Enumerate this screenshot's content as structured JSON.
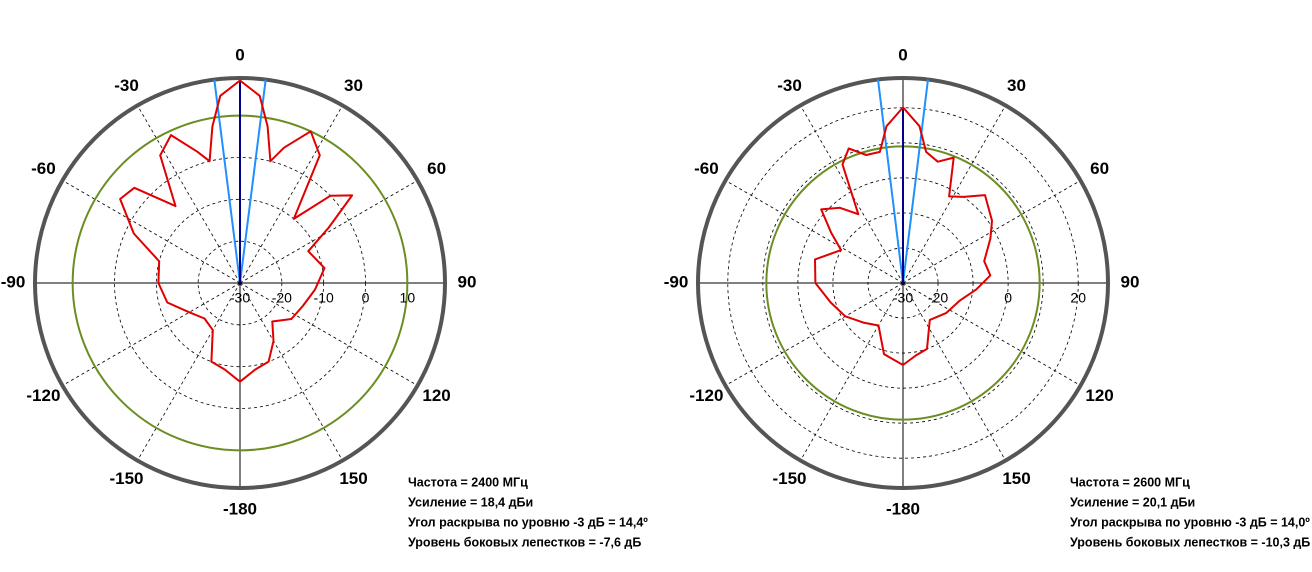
{
  "chart_data": [
    {
      "type": "polar",
      "color": "#e00000",
      "theta": [
        -180,
        -170,
        -160,
        -150,
        -135,
        -120,
        -105,
        -90,
        -75,
        -65,
        -55,
        -48,
        -40,
        -32,
        -25,
        -18,
        -14,
        -10,
        -6,
        0,
        6,
        10,
        14,
        18,
        25,
        32,
        40,
        46,
        52,
        58,
        65,
        80,
        95,
        110,
        125,
        140,
        150,
        160,
        170
      ],
      "values": [
        -6.4,
        -9,
        -10,
        -17,
        -18,
        -16,
        -12,
        -10.5,
        -10,
        -2,
        5,
        4,
        -6,
        6,
        9,
        3,
        0,
        8,
        15,
        18.4,
        15,
        8,
        0,
        4,
        10,
        6,
        -10,
        0,
        4,
        -5,
        -12,
        -9.5,
        -12,
        -14,
        -15,
        -18,
        -14,
        -10,
        -9
      ],
      "rlim": [
        -30,
        19
      ],
      "rticks": [
        -30,
        -20,
        -10,
        0,
        10
      ],
      "rgrid": [
        -20,
        -10,
        0,
        10
      ],
      "theta_ticks": [
        {
          "value": 0,
          "label": "0"
        },
        {
          "value": 30,
          "label": "30"
        },
        {
          "value": 60,
          "label": "60"
        },
        {
          "value": 90,
          "label": "90"
        },
        {
          "value": 120,
          "label": "120"
        },
        {
          "value": 150,
          "label": "150"
        },
        {
          "value": 180,
          "label": "-180"
        },
        {
          "value": -150,
          "label": "-150"
        },
        {
          "value": -120,
          "label": "-120"
        },
        {
          "value": -90,
          "label": "-90"
        },
        {
          "value": -60,
          "label": "-60"
        },
        {
          "value": -30,
          "label": "-30"
        }
      ],
      "reference_level": 10,
      "reference_color": "#6b8e23",
      "beam_lines": [
        -7.2,
        7.2
      ],
      "beam_color": "#1e90ff",
      "axis_color": "#00008b",
      "annotations": [
        "Частота = 2400 МГц",
        "Усиление = 18,4 дБи",
        "Угол раскрыва по уровню -3 дБ = 14,4º",
        "Уровень боковых лепестков = -7,6 дБ"
      ]
    },
    {
      "type": "polar",
      "color": "#e00000",
      "theta": [
        -180,
        -165,
        -150,
        -135,
        -120,
        -105,
        -90,
        -75,
        -62,
        -55,
        -48,
        -40,
        -33,
        -27,
        -22,
        -16,
        -10,
        -6,
        0,
        6,
        10,
        16,
        22,
        28,
        35,
        43,
        55,
        63,
        75,
        85,
        95,
        107,
        125,
        144,
        160,
        170
      ],
      "values": [
        -6.6,
        -9,
        -16,
        -14,
        -11,
        -8.6,
        -5,
        -4,
        -10,
        -5,
        1.4,
        -2,
        -6.6,
        8,
        11.4,
        8,
        8,
        15,
        20.1,
        15,
        8,
        6,
        8.6,
        -2,
        0,
        4.3,
        1,
        -2,
        -6,
        -5,
        -9,
        -13,
        -15,
        -17,
        -10,
        -9
      ],
      "rlim": [
        -30,
        28.5
      ],
      "rticks": [
        -30,
        -20,
        0,
        20
      ],
      "rgrid": [
        -20,
        -10,
        0,
        10,
        20
      ],
      "theta_ticks": [
        {
          "value": 0,
          "label": "0"
        },
        {
          "value": 30,
          "label": "30"
        },
        {
          "value": 60,
          "label": "60"
        },
        {
          "value": 90,
          "label": "90"
        },
        {
          "value": 120,
          "label": "120"
        },
        {
          "value": 150,
          "label": "150"
        },
        {
          "value": 180,
          "label": "-180"
        },
        {
          "value": -150,
          "label": "-150"
        },
        {
          "value": -120,
          "label": "-120"
        },
        {
          "value": -90,
          "label": "-90"
        },
        {
          "value": -60,
          "label": "-60"
        },
        {
          "value": -30,
          "label": "-30"
        }
      ],
      "reference_level": 9,
      "reference_color": "#6b8e23",
      "beam_lines": [
        -7,
        7
      ],
      "beam_color": "#1e90ff",
      "axis_color": "#00008b",
      "annotations": [
        "Частота = 2600 МГц",
        "Усиление = 20,1 дБи",
        "Угол раскрыва по уровню -3 дБ = 14,0º",
        "Уровень боковых лепестков = -10,3 дБ"
      ]
    }
  ]
}
